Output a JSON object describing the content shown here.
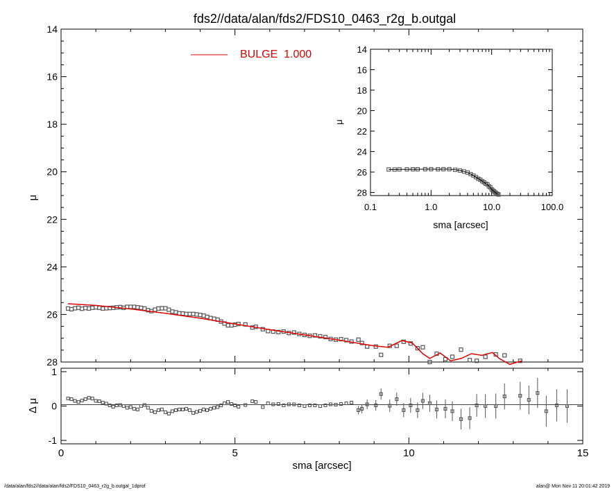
{
  "title": "fds2//data/alan/fds2/FDS10_0463_r2g_b.outgal",
  "footer": {
    "left": "/data/alan/fds2//data/alan/fds2/FDS10_0463_r2g_b.outgal_1dprof",
    "right": "alan@  Mon Nov 11 20:01:42 2019"
  },
  "colors": {
    "model": "#e00000",
    "points": "#555555",
    "axis": "#000000"
  },
  "chart_data": [
    {
      "id": "main",
      "type": "scatter",
      "title": "fds2//data/alan/fds2/FDS10_0463_r2g_b.outgal",
      "ylabel": "μ",
      "xlim": [
        0,
        15
      ],
      "ylim": [
        28,
        14
      ],
      "yticks": [
        "14",
        "16",
        "18",
        "20",
        "22",
        "24",
        "26",
        "28"
      ],
      "legend": {
        "label": "BULGE  1.000",
        "position": "top-center"
      },
      "series": [
        {
          "name": "BULGE  1.000",
          "kind": "line",
          "x": [
            0.2,
            1,
            2,
            3,
            4,
            5,
            6,
            7,
            8,
            9,
            9.4,
            9.8,
            10.1,
            10.4,
            10.6,
            10.9,
            11.2,
            11.5,
            11.8,
            12.1,
            12.4,
            12.6,
            12.9,
            13.25
          ],
          "y": [
            25.55,
            25.62,
            25.77,
            25.95,
            26.16,
            26.4,
            26.64,
            26.86,
            27.08,
            27.32,
            27.38,
            27.1,
            27.2,
            27.65,
            27.85,
            27.62,
            27.95,
            27.85,
            27.65,
            27.72,
            27.6,
            27.85,
            28.1,
            27.95
          ]
        },
        {
          "name": "",
          "kind": "points",
          "x": [
            0.2,
            0.3,
            0.4,
            0.5,
            0.6,
            0.7,
            0.8,
            0.9,
            1.0,
            1.1,
            1.2,
            1.3,
            1.4,
            1.5,
            1.6,
            1.7,
            1.8,
            1.9,
            2.0,
            2.1,
            2.2,
            2.3,
            2.4,
            2.5,
            2.6,
            2.7,
            2.8,
            2.9,
            3.0,
            3.1,
            3.2,
            3.3,
            3.4,
            3.5,
            3.6,
            3.7,
            3.8,
            3.9,
            4.0,
            4.1,
            4.2,
            4.3,
            4.4,
            4.5,
            4.6,
            4.7,
            4.8,
            4.9,
            5.0,
            5.1,
            5.3,
            5.5,
            5.6,
            5.8,
            5.95,
            6.1,
            6.25,
            6.4,
            6.55,
            6.7,
            6.85,
            7.0,
            7.15,
            7.3,
            7.45,
            7.6,
            7.75,
            7.9,
            8.05,
            8.2,
            8.35,
            8.55,
            8.65,
            8.8,
            9.05,
            9.2,
            9.45,
            9.65,
            9.85,
            10.05,
            10.25,
            10.4,
            10.6,
            10.8,
            11.05,
            11.25,
            11.5,
            11.75,
            11.95,
            12.2,
            12.5,
            12.75,
            13.2
          ],
          "y": [
            25.75,
            25.78,
            25.74,
            25.72,
            25.76,
            25.73,
            25.75,
            25.72,
            25.7,
            25.72,
            25.75,
            25.74,
            25.73,
            25.72,
            25.7,
            25.69,
            25.72,
            25.68,
            25.68,
            25.68,
            25.7,
            25.72,
            25.75,
            25.82,
            25.86,
            25.8,
            25.75,
            25.74,
            25.74,
            25.8,
            25.88,
            25.91,
            25.95,
            25.96,
            25.98,
            25.98,
            25.98,
            26.0,
            26.02,
            26.05,
            26.1,
            26.15,
            26.18,
            26.22,
            26.3,
            26.38,
            26.46,
            26.46,
            26.43,
            26.4,
            26.42,
            26.55,
            26.52,
            26.62,
            26.7,
            26.72,
            26.74,
            26.72,
            26.78,
            26.76,
            26.82,
            26.86,
            26.9,
            26.88,
            26.92,
            26.95,
            27.03,
            27.06,
            27.04,
            27.08,
            27.14,
            27.06,
            27.2,
            27.35,
            27.35,
            27.7,
            27.32,
            27.32,
            27.15,
            27.22,
            27.42,
            27.38,
            28.0,
            27.65,
            27.88,
            27.78,
            27.48,
            27.92,
            27.95,
            27.78,
            27.68,
            27.72,
            27.95
          ]
        }
      ]
    },
    {
      "id": "residual",
      "type": "scatter",
      "ylabel": "Δ μ",
      "xlabel": "sma [arcsec]",
      "xlim": [
        0,
        15
      ],
      "xticks": [
        "0",
        "5",
        "10",
        "15"
      ],
      "ylim": [
        -1.1,
        1.1
      ],
      "yticks": [
        "1",
        "0",
        "-1"
      ],
      "x": [
        0.2,
        0.3,
        0.4,
        0.5,
        0.6,
        0.7,
        0.8,
        0.9,
        1.0,
        1.1,
        1.2,
        1.3,
        1.4,
        1.5,
        1.6,
        1.7,
        1.8,
        1.9,
        2.0,
        2.1,
        2.2,
        2.3,
        2.4,
        2.5,
        2.6,
        2.7,
        2.8,
        2.9,
        3.0,
        3.1,
        3.2,
        3.3,
        3.4,
        3.5,
        3.6,
        3.7,
        3.8,
        3.9,
        4.0,
        4.1,
        4.2,
        4.3,
        4.4,
        4.5,
        4.6,
        4.7,
        4.8,
        4.9,
        5.0,
        5.1,
        5.3,
        5.5,
        5.6,
        5.8,
        5.95,
        6.1,
        6.25,
        6.4,
        6.55,
        6.7,
        6.85,
        7.0,
        7.15,
        7.3,
        7.45,
        7.6,
        7.75,
        7.9,
        8.05,
        8.2,
        8.35,
        8.55,
        8.65,
        8.8,
        9.05,
        9.2,
        9.45,
        9.65,
        9.85,
        10.05,
        10.25,
        10.4,
        10.6,
        10.8,
        11.05,
        11.25,
        11.5,
        11.75,
        11.95,
        12.2,
        12.5,
        12.75,
        13.2,
        13.45,
        13.7,
        13.95,
        14.25,
        14.55
      ],
      "y": [
        0.22,
        0.2,
        0.15,
        0.12,
        0.16,
        0.2,
        0.24,
        0.22,
        0.15,
        0.14,
        0.1,
        0.07,
        0.02,
        -0.02,
        0.02,
        0.03,
        0.0,
        -0.05,
        -0.03,
        -0.08,
        -0.1,
        0.0,
        0.03,
        -0.05,
        -0.14,
        -0.18,
        -0.12,
        -0.1,
        -0.18,
        -0.22,
        -0.15,
        -0.12,
        -0.1,
        -0.1,
        -0.08,
        -0.12,
        -0.2,
        -0.17,
        -0.14,
        -0.1,
        -0.12,
        -0.08,
        -0.05,
        -0.03,
        0.02,
        0.08,
        0.12,
        0.06,
        0.02,
        -0.02,
        0.03,
        0.14,
        0.12,
        -0.03,
        0.08,
        0.05,
        0.06,
        0.02,
        0.05,
        0.05,
        0.02,
        0.0,
        0.02,
        0.02,
        0.0,
        0.02,
        0.05,
        0.04,
        0.06,
        0.08,
        0.1,
        -0.12,
        -0.08,
        0.05,
        0.02,
        0.35,
        0.01,
        0.2,
        -0.12,
        0.02,
        -0.12,
        0.15,
        0.08,
        -0.1,
        -0.08,
        -0.15,
        -0.38,
        -0.35,
        0.02,
        0.0,
        0.0,
        0.28,
        0.3,
        0.18,
        0.38,
        -0.15,
        0.02,
        0.0
      ]
    },
    {
      "id": "inset",
      "type": "scatter",
      "ylabel": "μ",
      "xlabel": "sma [arcsec]",
      "xscale": "log",
      "xlim": [
        0.1,
        100
      ],
      "xticks": [
        "0.1",
        "1.0",
        "10.0",
        "100.0"
      ],
      "ylim": [
        28.3,
        14
      ],
      "yticks": [
        "14",
        "16",
        "18",
        "20",
        "22",
        "24",
        "26",
        "28"
      ],
      "x": [
        0.2,
        0.25,
        0.3,
        0.4,
        0.5,
        0.6,
        0.8,
        1.0,
        1.3,
        1.6,
        2.0,
        2.5,
        3.0,
        3.5,
        4.0,
        4.5,
        5.0,
        5.5,
        6.0,
        6.5,
        7.0,
        7.5,
        8.0,
        8.5,
        9.0,
        9.5,
        10.0,
        10.5,
        11.0,
        11.5,
        12.0,
        12.5,
        13.0
      ],
      "y": [
        25.75,
        25.76,
        25.74,
        25.74,
        25.73,
        25.73,
        25.72,
        25.72,
        25.73,
        25.72,
        25.72,
        25.78,
        25.85,
        25.95,
        26.05,
        26.2,
        26.35,
        26.5,
        26.65,
        26.75,
        26.9,
        27.0,
        27.15,
        27.2,
        27.4,
        27.5,
        27.7,
        27.8,
        27.9,
        28.0,
        28.1,
        28.15,
        28.2
      ]
    }
  ]
}
